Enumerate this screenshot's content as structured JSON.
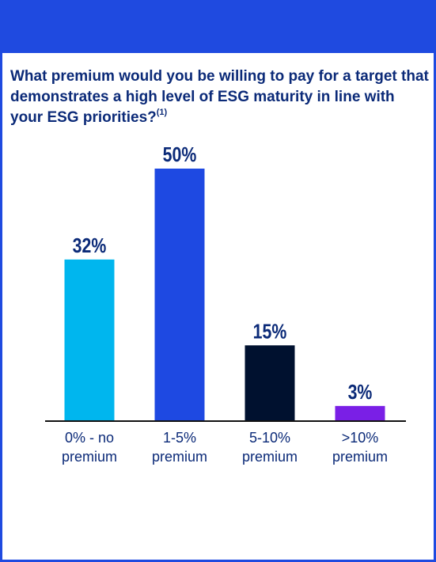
{
  "title": {
    "question": "What premium would you be willing to pay for a target that demonstrates a high level of ESG maturity in line with your ESG priorities?",
    "footnote_marker": "(1)"
  },
  "colors": {
    "frame": "#1f4ae0",
    "title": "#0b2a78",
    "axis": "#111111"
  },
  "chart_data": {
    "type": "bar",
    "categories": [
      "0% - no premium",
      "1-5% premium",
      "5-10% premium",
      ">10% premium"
    ],
    "category_lines": [
      [
        "0% - no",
        "premium"
      ],
      [
        "1-5%",
        "premium"
      ],
      [
        "5-10%",
        "premium"
      ],
      [
        ">10%",
        "premium"
      ]
    ],
    "values": [
      32,
      50,
      15,
      3
    ],
    "value_labels": [
      "32%",
      "50%",
      "15%",
      "3%"
    ],
    "bar_colors": [
      "#00b6ee",
      "#1e49e2",
      "#00112f",
      "#7a1fe6"
    ],
    "ylim": [
      0,
      50
    ],
    "grid": false,
    "legend": "none"
  }
}
